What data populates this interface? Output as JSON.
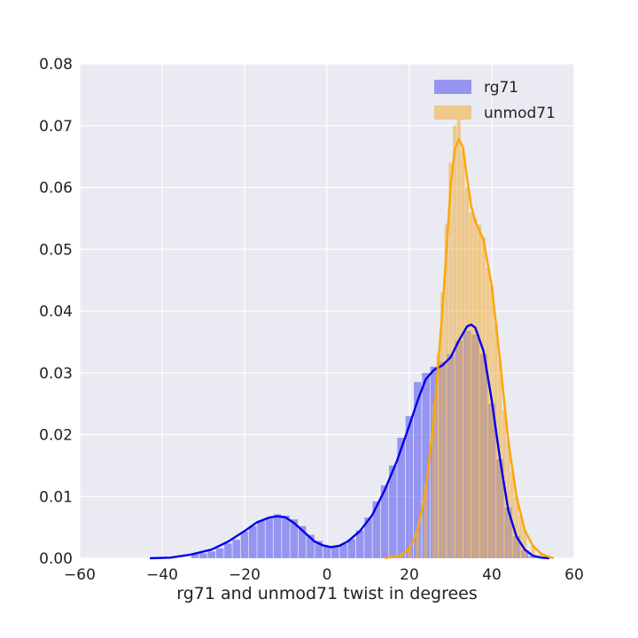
{
  "chart_data": {
    "type": "histogram",
    "xlabel": "rg71 and unmod71 twist in degrees",
    "ylabel": "",
    "xlim": [
      -60,
      60
    ],
    "ylim": [
      0,
      0.08
    ],
    "x_ticks": [
      -60,
      -40,
      -20,
      0,
      20,
      40,
      60
    ],
    "x_tick_labels": [
      "−60",
      "−40",
      "−20",
      "0",
      "20",
      "40",
      "60"
    ],
    "y_ticks": [
      0,
      0.01,
      0.02,
      0.03,
      0.04,
      0.05,
      0.06,
      0.07,
      0.08
    ],
    "y_tick_labels": [
      "0.00",
      "0.01",
      "0.02",
      "0.03",
      "0.04",
      "0.05",
      "0.06",
      "0.07",
      "0.08"
    ],
    "grid": true,
    "legend_position": "top-right",
    "series": [
      {
        "name": "rg71",
        "bar_color": "#5b5bf0",
        "line_color": "#0000ee",
        "kde": [
          [
            -43,
            0
          ],
          [
            -38,
            0.0001
          ],
          [
            -33,
            0.0006
          ],
          [
            -28,
            0.0014
          ],
          [
            -24,
            0.0027
          ],
          [
            -20,
            0.0044
          ],
          [
            -17,
            0.0058
          ],
          [
            -14,
            0.0066
          ],
          [
            -12,
            0.0068
          ],
          [
            -10,
            0.0066
          ],
          [
            -8,
            0.0057
          ],
          [
            -5,
            0.0039
          ],
          [
            -3,
            0.0027
          ],
          [
            -1,
            0.0021
          ],
          [
            1,
            0.0018
          ],
          [
            3,
            0.002
          ],
          [
            5,
            0.0027
          ],
          [
            8,
            0.0044
          ],
          [
            11,
            0.007
          ],
          [
            14,
            0.011
          ],
          [
            17,
            0.0158
          ],
          [
            20,
            0.0215
          ],
          [
            22,
            0.0255
          ],
          [
            24,
            0.029
          ],
          [
            26,
            0.0305
          ],
          [
            28,
            0.0312
          ],
          [
            30,
            0.0325
          ],
          [
            32,
            0.0352
          ],
          [
            34,
            0.0375
          ],
          [
            35,
            0.0378
          ],
          [
            36,
            0.0373
          ],
          [
            38,
            0.0335
          ],
          [
            40,
            0.0255
          ],
          [
            42,
            0.016
          ],
          [
            44,
            0.0078
          ],
          [
            46,
            0.0035
          ],
          [
            48,
            0.0014
          ],
          [
            50,
            0.0004
          ],
          [
            52,
            0.0001
          ],
          [
            54,
            0
          ]
        ],
        "bins": [
          [
            -32,
            0.0007
          ],
          [
            -30,
            0.0008
          ],
          [
            -28,
            0.0011
          ],
          [
            -26,
            0.0016
          ],
          [
            -24,
            0.0024
          ],
          [
            -22,
            0.003
          ],
          [
            -20,
            0.0043
          ],
          [
            -18,
            0.0052
          ],
          [
            -16,
            0.0061
          ],
          [
            -14,
            0.0066
          ],
          [
            -12,
            0.0071
          ],
          [
            -10,
            0.0069
          ],
          [
            -8,
            0.0063
          ],
          [
            -6,
            0.0052
          ],
          [
            -4,
            0.0038
          ],
          [
            -2,
            0.0028
          ],
          [
            0,
            0.002
          ],
          [
            2,
            0.0019
          ],
          [
            4,
            0.0023
          ],
          [
            6,
            0.0031
          ],
          [
            8,
            0.0045
          ],
          [
            10,
            0.0066
          ],
          [
            12,
            0.0092
          ],
          [
            14,
            0.0118
          ],
          [
            16,
            0.015
          ],
          [
            18,
            0.0195
          ],
          [
            20,
            0.023
          ],
          [
            22,
            0.0285
          ],
          [
            24,
            0.03
          ],
          [
            26,
            0.031
          ],
          [
            28,
            0.0318
          ],
          [
            30,
            0.033
          ],
          [
            32,
            0.0352
          ],
          [
            34,
            0.0368
          ],
          [
            36,
            0.0362
          ],
          [
            38,
            0.033
          ],
          [
            40,
            0.025
          ],
          [
            42,
            0.016
          ],
          [
            44,
            0.0082
          ],
          [
            46,
            0.0036
          ],
          [
            48,
            0.0013
          ],
          [
            50,
            0.0004
          ]
        ]
      },
      {
        "name": "unmod71",
        "bar_color": "#f0b347",
        "line_color": "#ffa500",
        "kde": [
          [
            14,
            0
          ],
          [
            18,
            0.0005
          ],
          [
            20,
            0.0015
          ],
          [
            22,
            0.0045
          ],
          [
            24,
            0.011
          ],
          [
            26,
            0.023
          ],
          [
            28,
            0.04
          ],
          [
            29,
            0.05
          ],
          [
            30,
            0.06
          ],
          [
            31,
            0.066
          ],
          [
            32,
            0.0678
          ],
          [
            33,
            0.0665
          ],
          [
            34,
            0.0615
          ],
          [
            35,
            0.057
          ],
          [
            36,
            0.0545
          ],
          [
            38,
            0.0515
          ],
          [
            40,
            0.044
          ],
          [
            42,
            0.032
          ],
          [
            44,
            0.019
          ],
          [
            46,
            0.01
          ],
          [
            48,
            0.0045
          ],
          [
            50,
            0.002
          ],
          [
            52,
            0.0007
          ],
          [
            54,
            0.0002
          ],
          [
            55,
            0
          ]
        ],
        "bins": [
          [
            16,
            0.0003
          ],
          [
            18,
            0.0006
          ],
          [
            20,
            0.0015
          ],
          [
            22,
            0.0045
          ],
          [
            24,
            0.012
          ],
          [
            26,
            0.025
          ],
          [
            27,
            0.033
          ],
          [
            28,
            0.043
          ],
          [
            29,
            0.054
          ],
          [
            30,
            0.064
          ],
          [
            31,
            0.07
          ],
          [
            32,
            0.071
          ],
          [
            33,
            0.066
          ],
          [
            34,
            0.06
          ],
          [
            35,
            0.056
          ],
          [
            36,
            0.055
          ],
          [
            37,
            0.054
          ],
          [
            38,
            0.052
          ],
          [
            39,
            0.047
          ],
          [
            40,
            0.044
          ],
          [
            41,
            0.038
          ],
          [
            42,
            0.032
          ],
          [
            43,
            0.024
          ],
          [
            44,
            0.019
          ],
          [
            45,
            0.014
          ],
          [
            46,
            0.01
          ],
          [
            47,
            0.007
          ],
          [
            48,
            0.0045
          ],
          [
            50,
            0.002
          ],
          [
            52,
            0.0007
          ]
        ]
      }
    ]
  }
}
